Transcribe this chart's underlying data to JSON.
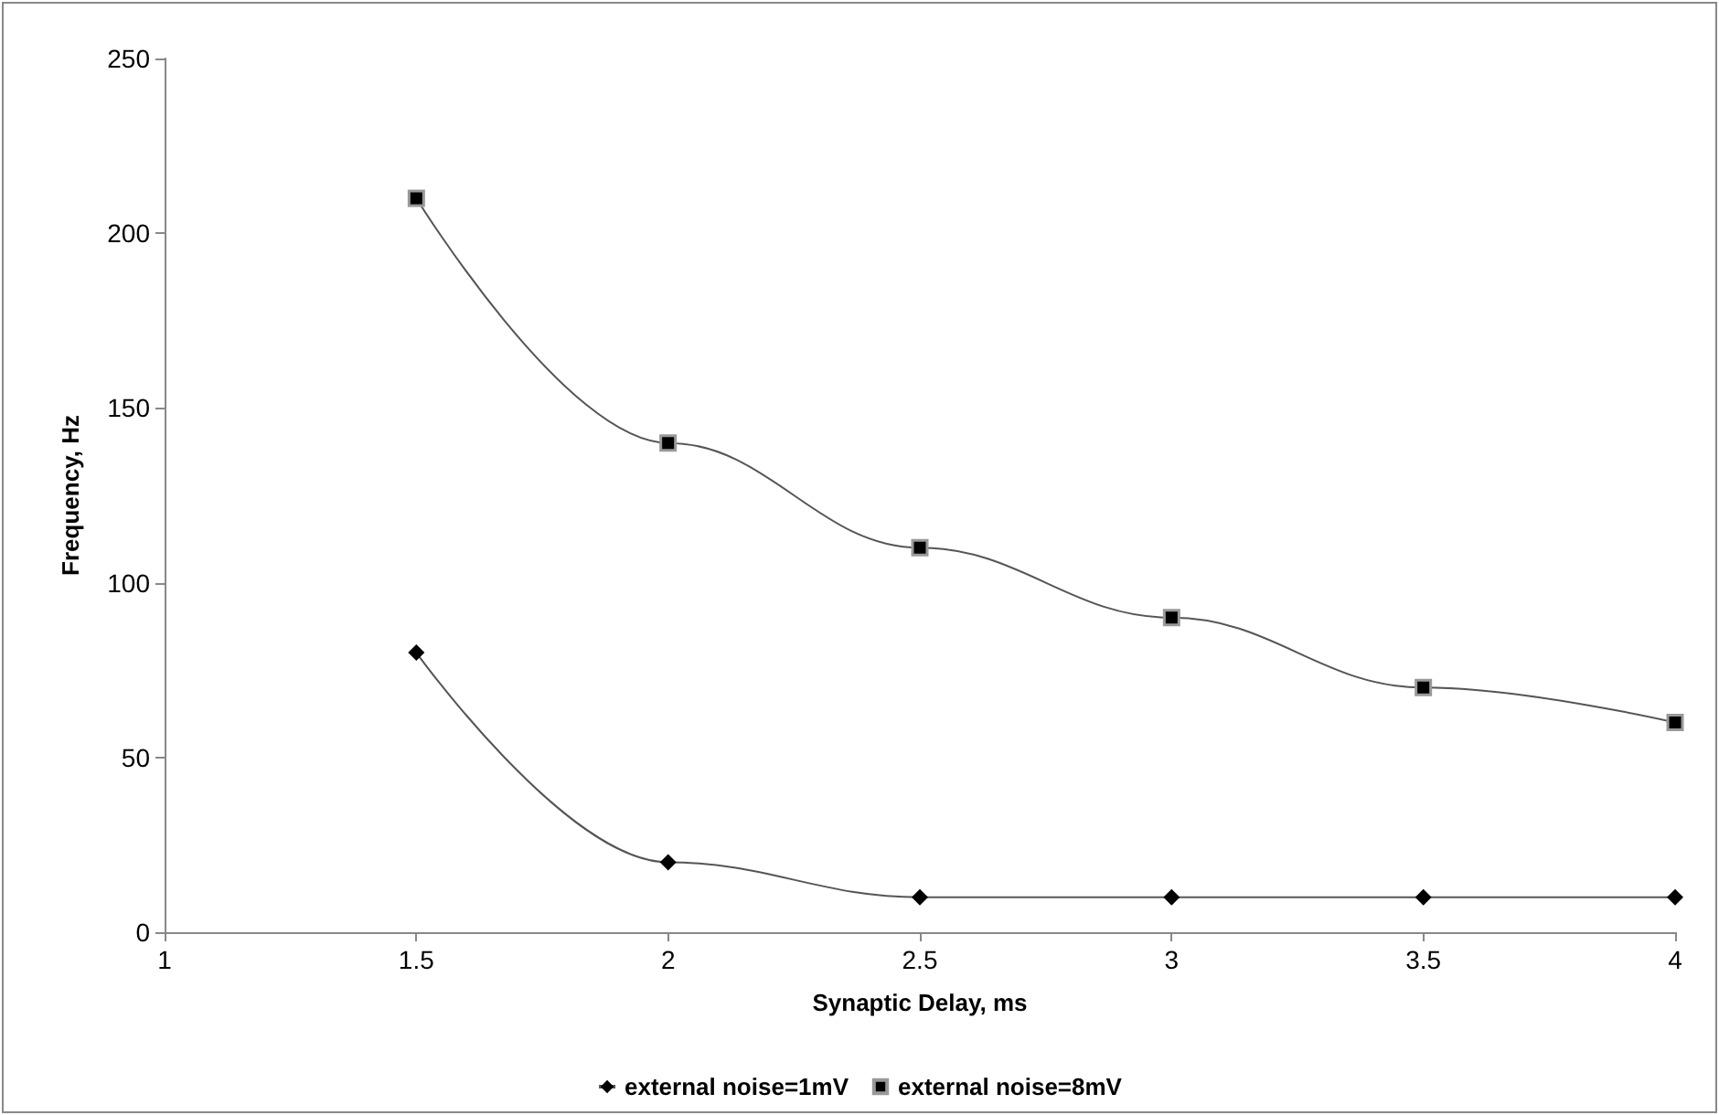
{
  "chart_data": {
    "type": "line",
    "xlabel": "Synaptic Delay, ms",
    "ylabel": "Frequency, Hz",
    "x": [
      1.5,
      2,
      2.5,
      3,
      3.5,
      4
    ],
    "series": [
      {
        "name": "external noise=1mV",
        "color": "#000000",
        "marker": "diamond",
        "values": [
          80,
          20,
          10,
          10,
          10,
          10
        ]
      },
      {
        "name": "external noise=8mV",
        "color": "#000000",
        "marker": "square",
        "values": [
          210,
          140,
          110,
          90,
          70,
          60
        ]
      }
    ],
    "xlim": [
      1,
      4
    ],
    "xticks": [
      1,
      1.5,
      2,
      2.5,
      3,
      3.5,
      4
    ],
    "ylim": [
      0,
      250
    ],
    "yticks": [
      0,
      50,
      100,
      150,
      200,
      250
    ],
    "grid": false,
    "legend": "bottom",
    "line_style": "solid"
  }
}
